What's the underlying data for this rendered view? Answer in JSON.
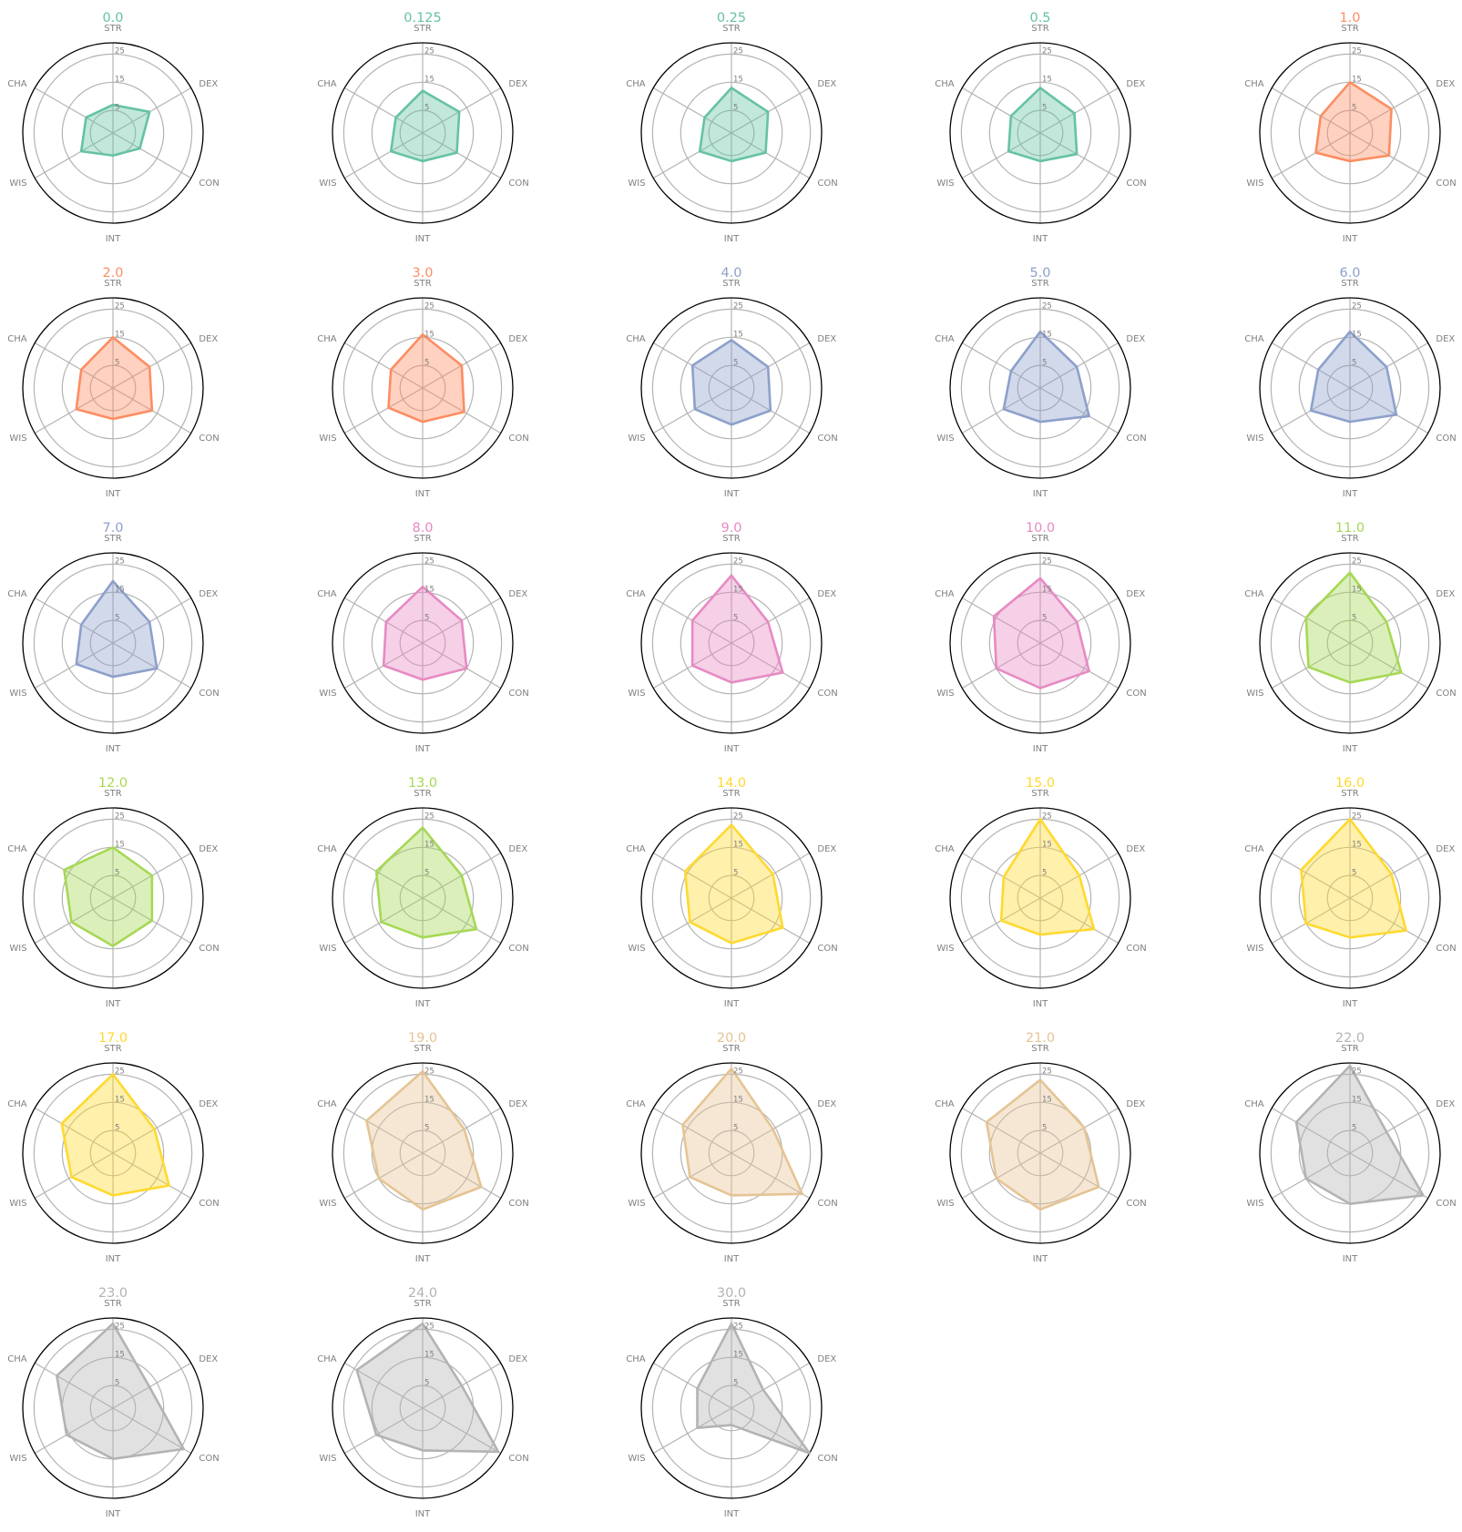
{
  "chart_data": {
    "type": "radar",
    "axes": [
      "STR",
      "DEX",
      "CON",
      "INT",
      "WIS",
      "CHA"
    ],
    "rticks": [
      5,
      15,
      25
    ],
    "rlim": [
      -3,
      29
    ],
    "grid": true,
    "charts": [
      {
        "title": "0.0",
        "color": "#66c2a5",
        "values": [
          7,
          12,
          8,
          5,
          10,
          8
        ]
      },
      {
        "title": "0.125",
        "color": "#66c2a5",
        "values": [
          12,
          12,
          11,
          7,
          10,
          8
        ]
      },
      {
        "title": "0.25",
        "color": "#66c2a5",
        "values": [
          13,
          12,
          11,
          7,
          10,
          8
        ]
      },
      {
        "title": "0.5",
        "color": "#66c2a5",
        "values": [
          13,
          11,
          12,
          7,
          10,
          9
        ]
      },
      {
        "title": "1.0",
        "color": "#fc8d62",
        "values": [
          15,
          14,
          13,
          7,
          11,
          9
        ]
      },
      {
        "title": "2.0",
        "color": "#fc8d62",
        "values": [
          15,
          12,
          13,
          8,
          12,
          10
        ]
      },
      {
        "title": "3.0",
        "color": "#fc8d62",
        "values": [
          16,
          13,
          14,
          9,
          11,
          10
        ]
      },
      {
        "title": "4.0",
        "color": "#8da0cb",
        "values": [
          14,
          12,
          13,
          10,
          12,
          13
        ]
      },
      {
        "title": "5.0",
        "color": "#8da0cb",
        "values": [
          17,
          12,
          17,
          9,
          12,
          9
        ]
      },
      {
        "title": "6.0",
        "color": "#8da0cb",
        "values": [
          17,
          12,
          16,
          9,
          13,
          10
        ]
      },
      {
        "title": "7.0",
        "color": "#8da0cb",
        "values": [
          19,
          12,
          15,
          9,
          12,
          10
        ]
      },
      {
        "title": "8.0",
        "color": "#e78ac3",
        "values": [
          17,
          13,
          15,
          10,
          13,
          12
        ]
      },
      {
        "title": "9.0",
        "color": "#e78ac3",
        "values": [
          21,
          12,
          18,
          11,
          13,
          13
        ]
      },
      {
        "title": "10.0",
        "color": "#e78ac3",
        "values": [
          20,
          12,
          17,
          13,
          15,
          16
        ]
      },
      {
        "title": "11.0",
        "color": "#a6d854",
        "values": [
          22,
          12,
          18,
          11,
          14,
          15
        ]
      },
      {
        "title": "12.0",
        "color": "#a6d854",
        "values": [
          15,
          13,
          13,
          14,
          14,
          17
        ]
      },
      {
        "title": "13.0",
        "color": "#a6d854",
        "values": [
          22,
          13,
          19,
          11,
          14,
          16
        ]
      },
      {
        "title": "14.0",
        "color": "#ffd92f",
        "values": [
          23,
          14,
          18,
          13,
          14,
          16
        ]
      },
      {
        "title": "15.0",
        "color": "#ffd92f",
        "values": [
          25,
          13,
          19,
          10,
          13,
          12
        ]
      },
      {
        "title": "16.0",
        "color": "#ffd92f",
        "values": [
          25,
          14,
          20,
          11,
          15,
          17
        ]
      },
      {
        "title": "17.0",
        "color": "#ffd92f",
        "values": [
          25,
          14,
          20,
          12,
          14,
          18
        ]
      },
      {
        "title": "19.0",
        "color": "#e5c494",
        "values": [
          26,
          14,
          21,
          17,
          15,
          20
        ]
      },
      {
        "title": "20.0",
        "color": "#e5c494",
        "values": [
          27,
          14,
          26,
          12,
          14,
          17
        ]
      },
      {
        "title": "21.0",
        "color": "#e5c494",
        "values": [
          23,
          15,
          21,
          17,
          15,
          19
        ]
      },
      {
        "title": "22.0",
        "color": "#b3b3b3",
        "values": [
          28,
          12,
          27,
          15,
          15,
          19
        ]
      },
      {
        "title": "23.0",
        "color": "#b3b3b3",
        "values": [
          27,
          12,
          26,
          15,
          16,
          20
        ]
      },
      {
        "title": "24.0",
        "color": "#b3b3b3",
        "values": [
          27,
          13,
          28,
          12,
          16,
          24
        ]
      },
      {
        "title": "30.0",
        "color": "#b3b3b3",
        "values": [
          27,
          10,
          29,
          3,
          11,
          11
        ]
      }
    ]
  }
}
